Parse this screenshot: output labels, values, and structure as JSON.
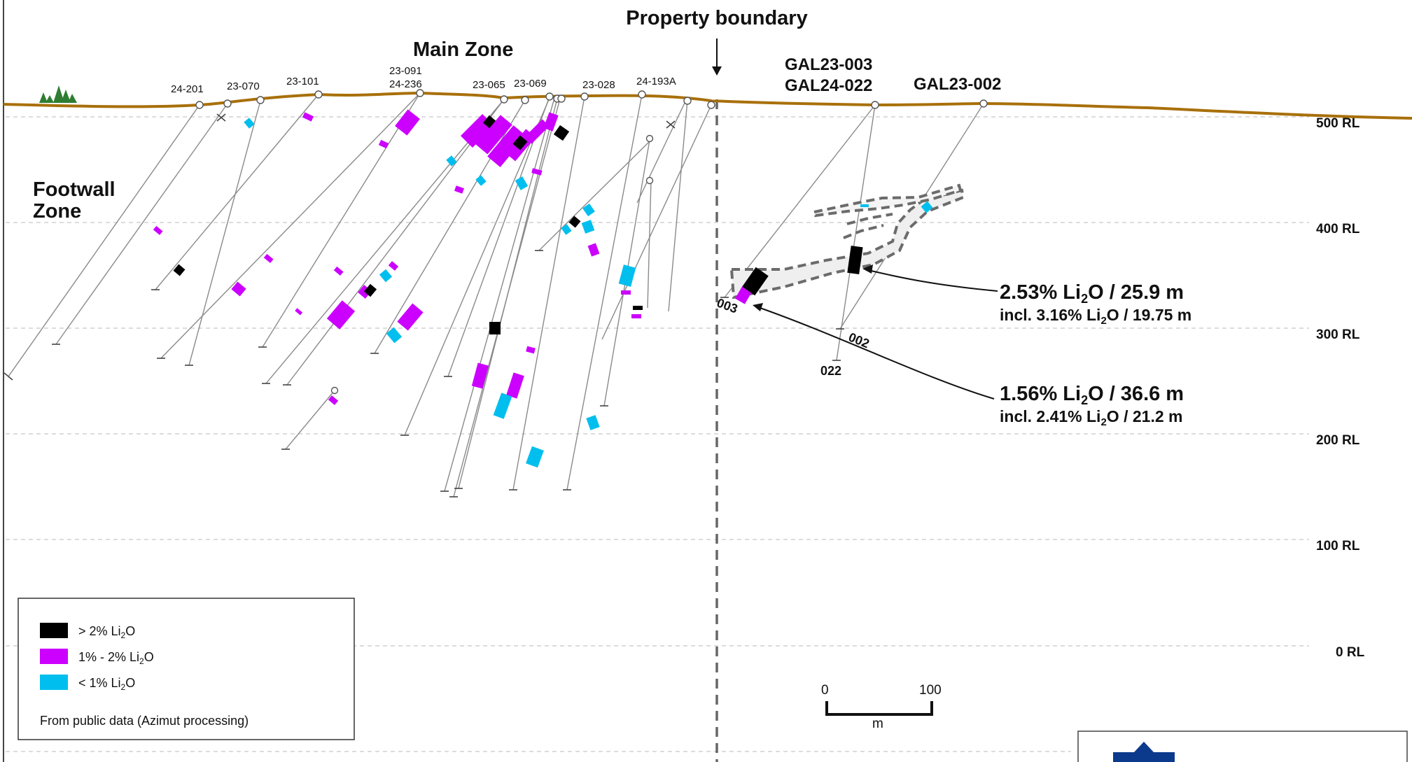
{
  "title": "Property boundary",
  "zones": {
    "main": "Main Zone",
    "footwall_line1": "Footwall",
    "footwall_line2": "Zone"
  },
  "elevations": [
    "500 RL",
    "400 RL",
    "300 RL",
    "200 RL",
    "100 RL",
    "0 RL"
  ],
  "west_holes": [
    "24-201",
    "23-070",
    "23-101",
    "23-091",
    "24-236",
    "23-065",
    "23-069",
    "23-028",
    "24-193A"
  ],
  "east_holes": {
    "gal23_003": "GAL23-003",
    "gal24_022": "GAL24-022",
    "gal23_002": "GAL23-002",
    "end_003": "003",
    "end_002": "002",
    "end_022": "022"
  },
  "intercepts": [
    {
      "line1": "2.53% Li",
      "sub": "2",
      "tail": "O / 25.9 m",
      "line2_pre": "incl. 3.16% Li",
      "line2_tail": "O / 19.75 m"
    },
    {
      "line1": "1.56% Li",
      "sub": "2",
      "tail": "O / 36.6 m",
      "line2_pre": "incl. 2.41% Li",
      "line2_tail": "O / 21.2 m"
    }
  ],
  "legend": {
    "items": [
      {
        "pre": "> 2% Li",
        "sub": "2",
        "post": "O",
        "color": "#000000"
      },
      {
        "pre": "1% - 2% Li",
        "sub": "2",
        "post": "O",
        "color": "#cc00ff"
      },
      {
        "pre": "< 1% Li",
        "sub": "2",
        "post": "O",
        "color": "#00bfee"
      }
    ],
    "note": "From public data (Azimut processing)"
  },
  "scale": {
    "left": "0",
    "right": "100",
    "unit": "m"
  },
  "colors": {
    "topography": "#a8700a",
    "high_grade": "#000000",
    "mid_grade": "#cc00ff",
    "low_grade": "#00bfee",
    "boundary": "#666666",
    "dyke_outline": "#6b6b6b",
    "dyke_fill": "#efefef",
    "tree": "#2e7d32",
    "logo": "#0b3a8c"
  }
}
